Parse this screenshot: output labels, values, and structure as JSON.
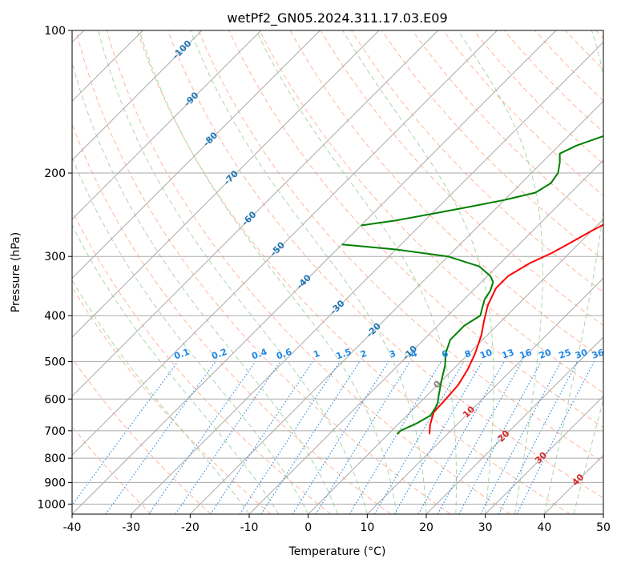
{
  "chart_data": {
    "type": "line",
    "title": "wetPf2_GN05.2024.311.17.03.E09",
    "xlabel": "Temperature (°C)",
    "ylabel": "Pressure (hPa)",
    "xlim": [
      -40,
      50
    ],
    "ylim": [
      1050,
      100
    ],
    "y_scale": "log",
    "x_ticks": [
      -40,
      -30,
      -20,
      -10,
      0,
      10,
      20,
      30,
      40,
      50
    ],
    "y_ticks": [
      100,
      200,
      300,
      400,
      500,
      600,
      700,
      800,
      900,
      1000
    ],
    "grid": true,
    "colors": {
      "temperature": "#ff0000",
      "dewpoint": "#008000",
      "isotherm": "#aaaaaa",
      "dry_adiabat": "#ffa98c",
      "moist_adiabat": "#9fd39f",
      "mixing_ratio": "#1e88e5",
      "isotherm_label_cold": "#1f77b4",
      "isotherm_label_warm": "#d62728",
      "hodo_curve": "#d9c8a8"
    },
    "series": [
      {
        "key": "temperature",
        "points": [
          [
            7,
            712
          ],
          [
            5.5,
            680
          ],
          [
            4,
            640
          ],
          [
            3.8,
            600
          ],
          [
            3.5,
            560
          ],
          [
            2.5,
            520
          ],
          [
            1,
            480
          ],
          [
            -1,
            440
          ],
          [
            -3,
            410
          ],
          [
            -5,
            380
          ],
          [
            -6.5,
            350
          ],
          [
            -6.5,
            330
          ],
          [
            -5,
            310
          ],
          [
            -3,
            295
          ],
          [
            -1.5,
            280
          ],
          [
            0,
            265
          ],
          [
            2.5,
            245
          ],
          [
            6,
            225
          ],
          [
            10,
            205
          ],
          [
            14.5,
            185
          ],
          [
            18.5,
            168
          ],
          [
            21,
            155
          ],
          [
            23,
            145
          ],
          [
            26,
            130
          ],
          [
            30.5,
            117
          ],
          [
            33,
            110
          ],
          [
            35,
            104
          ],
          [
            36,
            100
          ]
        ]
      },
      {
        "key": "dewpoint",
        "points": [
          [
            1.5,
            712
          ],
          [
            1.5,
            700
          ],
          [
            3,
            675
          ],
          [
            4,
            650
          ],
          [
            3.5,
            625
          ],
          [
            3,
            610
          ],
          [
            2,
            590
          ],
          [
            0,
            550
          ],
          [
            -2,
            510
          ],
          [
            -4,
            480
          ],
          [
            -5.5,
            450
          ],
          [
            -5.5,
            420
          ],
          [
            -4.5,
            400
          ],
          [
            -5.5,
            385
          ],
          [
            -6.5,
            370
          ],
          [
            -7,
            355
          ],
          [
            -8,
            340
          ],
          [
            -9.5,
            330
          ],
          [
            -13,
            315
          ],
          [
            -20,
            300
          ],
          [
            -30,
            290
          ],
          [
            -40,
            283
          ]
        ]
      },
      {
        "key": "dewpoint_upper",
        "points": [
          [
            -40,
            258
          ],
          [
            -35,
            252
          ],
          [
            -30,
            244
          ],
          [
            -25,
            236
          ],
          [
            -20,
            228
          ],
          [
            -16,
            220
          ],
          [
            -15,
            210
          ],
          [
            -15.5,
            200
          ],
          [
            -17,
            190
          ],
          [
            -18.5,
            182
          ],
          [
            -17,
            175
          ],
          [
            -14,
            167
          ],
          [
            -11.5,
            160
          ],
          [
            -10,
            152
          ],
          [
            -8.5,
            145
          ],
          [
            -8,
            140
          ],
          [
            -7.5,
            135
          ],
          [
            -6.5,
            127
          ],
          [
            -5,
            120
          ],
          [
            -3,
            113
          ],
          [
            -1.5,
            107
          ],
          [
            -0.5,
            103
          ],
          [
            0,
            100
          ]
        ]
      }
    ],
    "isotherm_labels": [
      -100,
      -90,
      -80,
      -70,
      -60,
      -50,
      -40,
      -30,
      -20,
      -10,
      0,
      10,
      20,
      30,
      40
    ],
    "mixing_ratio_labels": [
      "0.1",
      "0.2",
      "0.4",
      "0.6",
      "1",
      "1.5",
      "2",
      "3",
      "4",
      "6",
      "8",
      "10",
      "13",
      "16",
      "20",
      "25",
      "30",
      "36"
    ]
  }
}
